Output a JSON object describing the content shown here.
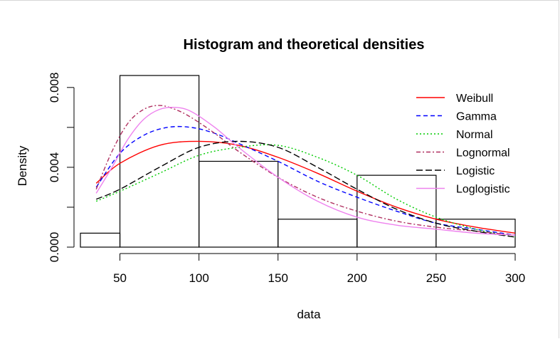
{
  "chart_data": {
    "type": "bar",
    "title": "Histogram and theoretical densities",
    "xlabel": "data",
    "ylabel": "Density",
    "xlim": [
      25,
      300
    ],
    "ylim": [
      0,
      0.0086
    ],
    "x_ticks": [
      50,
      100,
      150,
      200,
      250,
      300
    ],
    "x_tick_labels": [
      "50",
      "100",
      "150",
      "200",
      "250",
      "300"
    ],
    "y_ticks": [
      0,
      0.004,
      0.008
    ],
    "y_tick_labels": [
      "0.000",
      "0.004",
      "0.008"
    ],
    "grid": false,
    "legend_position": "top-right",
    "histogram": {
      "bins": [
        {
          "from": 25,
          "to": 50,
          "density": 0.0007
        },
        {
          "from": 50,
          "to": 100,
          "density": 0.0086
        },
        {
          "from": 100,
          "to": 150,
          "density": 0.0043
        },
        {
          "from": 150,
          "to": 200,
          "density": 0.0014
        },
        {
          "from": 200,
          "to": 250,
          "density": 0.0036
        },
        {
          "from": 250,
          "to": 300,
          "density": 0.0014
        }
      ]
    },
    "series": [
      {
        "name": "Weibull",
        "color": "#ff0000",
        "dash": "solid",
        "x": [
          35,
          50,
          75,
          100,
          125,
          150,
          175,
          200,
          225,
          250,
          275,
          300
        ],
        "y": [
          0.0032,
          0.0042,
          0.0051,
          0.0053,
          0.0051,
          0.0045,
          0.0037,
          0.0028,
          0.002,
          0.0014,
          0.001,
          0.0007
        ]
      },
      {
        "name": "Gamma",
        "color": "#0000ff",
        "dash": "dashed",
        "x": [
          35,
          50,
          65,
          80,
          95,
          110,
          125,
          150,
          175,
          200,
          225,
          250,
          275,
          300
        ],
        "y": [
          0.003,
          0.0047,
          0.0056,
          0.006,
          0.006,
          0.0057,
          0.0052,
          0.0043,
          0.0033,
          0.0025,
          0.0018,
          0.0012,
          0.0009,
          0.0006
        ]
      },
      {
        "name": "Normal",
        "color": "#00cc00",
        "dash": "dotted",
        "x": [
          35,
          50,
          75,
          100,
          125,
          150,
          175,
          200,
          225,
          250,
          275,
          300
        ],
        "y": [
          0.0023,
          0.0028,
          0.0037,
          0.0046,
          0.005,
          0.0051,
          0.0045,
          0.0036,
          0.0024,
          0.0015,
          0.0009,
          0.0005
        ]
      },
      {
        "name": "Lognormal",
        "color": "#b03060",
        "dash": "dashdot",
        "x": [
          35,
          45,
          55,
          65,
          75,
          85,
          95,
          110,
          125,
          150,
          175,
          200,
          225,
          250,
          275,
          300
        ],
        "y": [
          0.0029,
          0.0048,
          0.0062,
          0.0069,
          0.0071,
          0.0069,
          0.0065,
          0.0057,
          0.0048,
          0.0035,
          0.0025,
          0.0018,
          0.0013,
          0.001,
          0.0008,
          0.0006
        ]
      },
      {
        "name": "Logistic",
        "color": "#000000",
        "dash": "longdash",
        "x": [
          35,
          50,
          75,
          100,
          125,
          150,
          175,
          200,
          225,
          250,
          275,
          300
        ],
        "y": [
          0.0024,
          0.0029,
          0.004,
          0.005,
          0.0053,
          0.005,
          0.004,
          0.0029,
          0.0019,
          0.0012,
          0.0008,
          0.0005
        ]
      },
      {
        "name": "Loglogistic",
        "color": "#ee82ee",
        "dash": "solid",
        "x": [
          35,
          45,
          55,
          65,
          75,
          85,
          95,
          110,
          125,
          150,
          175,
          200,
          225,
          250,
          275,
          300
        ],
        "y": [
          0.0027,
          0.004,
          0.0054,
          0.0064,
          0.0069,
          0.007,
          0.0068,
          0.006,
          0.005,
          0.0035,
          0.0023,
          0.0015,
          0.0011,
          0.0009,
          0.0007,
          0.0006
        ]
      }
    ]
  }
}
